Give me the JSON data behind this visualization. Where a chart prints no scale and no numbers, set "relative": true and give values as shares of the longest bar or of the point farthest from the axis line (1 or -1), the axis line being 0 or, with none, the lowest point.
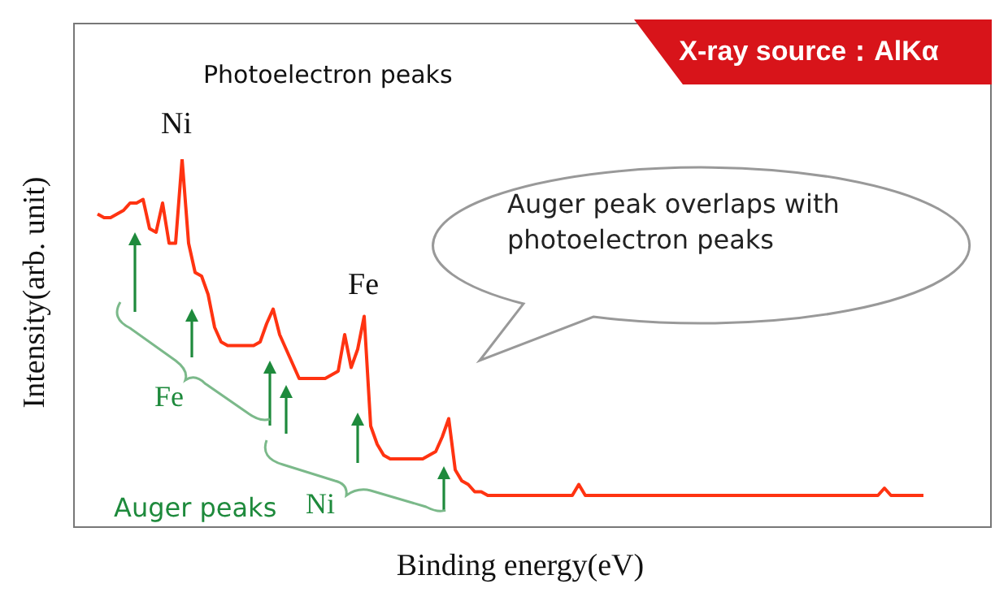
{
  "chart_data": {
    "type": "line",
    "relative": true,
    "marker": "none",
    "color": "#ff3311",
    "xlabel": "Binding energy(eV)",
    "ylabel": "Intensity(arb. unit)",
    "categories": [
      null,
      null,
      null,
      null,
      null,
      null,
      null,
      null,
      null,
      null,
      null,
      null,
      null,
      null,
      null,
      null,
      null,
      null,
      null,
      null,
      null,
      null,
      null,
      null,
      null,
      null,
      null,
      null,
      null,
      null,
      null,
      null,
      null,
      null,
      null,
      null,
      null,
      null,
      null,
      null,
      null,
      null,
      null,
      null,
      null,
      null,
      null,
      null,
      null,
      null,
      null,
      null,
      null,
      null,
      null,
      null,
      null,
      null,
      null,
      null,
      null,
      null,
      null,
      null,
      null,
      null,
      null,
      null,
      null,
      null,
      null,
      null,
      null,
      null,
      null,
      null,
      null,
      null,
      null,
      null,
      null,
      null,
      null,
      null,
      null,
      null,
      null,
      null,
      null,
      null,
      null,
      null,
      null,
      null,
      null,
      null,
      null,
      null,
      null,
      null,
      null,
      null,
      null,
      null,
      null,
      null,
      null,
      null,
      null,
      null,
      null,
      null,
      null,
      null,
      null,
      null,
      null,
      null,
      null,
      null,
      null,
      null,
      null,
      null,
      null,
      null,
      null,
      null
    ],
    "values": [
      0.85,
      0.84,
      0.84,
      0.85,
      0.86,
      0.88,
      0.88,
      0.89,
      0.81,
      0.8,
      0.88,
      0.77,
      0.77,
      1.0,
      0.77,
      0.69,
      0.68,
      0.63,
      0.54,
      0.5,
      0.49,
      0.49,
      0.49,
      0.49,
      0.49,
      0.5,
      0.55,
      0.59,
      0.52,
      0.48,
      0.44,
      0.4,
      0.4,
      0.4,
      0.4,
      0.4,
      0.41,
      0.42,
      0.52,
      0.43,
      0.48,
      0.57,
      0.27,
      0.22,
      0.19,
      0.18,
      0.18,
      0.18,
      0.18,
      0.18,
      0.18,
      0.19,
      0.2,
      0.24,
      0.29,
      0.15,
      0.12,
      0.11,
      0.09,
      0.09,
      0.08,
      0.08,
      0.08,
      0.08,
      0.08,
      0.08,
      0.08,
      0.08,
      0.08,
      0.08,
      0.08,
      0.08,
      0.08,
      0.08,
      0.11,
      0.08,
      0.08,
      0.08,
      0.08,
      0.08,
      0.08,
      0.08,
      0.08,
      0.08,
      0.08,
      0.08,
      0.08,
      0.08,
      0.08,
      0.08,
      0.08,
      0.08,
      0.08,
      0.08,
      0.08,
      0.08,
      0.08,
      0.08,
      0.08,
      0.08,
      0.08,
      0.08,
      0.08,
      0.08,
      0.08,
      0.08,
      0.08,
      0.08,
      0.08,
      0.08,
      0.08,
      0.08,
      0.08,
      0.08,
      0.08,
      0.08,
      0.08,
      0.08,
      0.08,
      0.08,
      0.08,
      0.1,
      0.08,
      0.08,
      0.08,
      0.08,
      0.08,
      0.08
    ],
    "annotations": [
      "X-ray source：AlKα",
      "Photoelectron peaks",
      "Ni",
      "Fe",
      "Auger peak overlaps with photoelectron peaks",
      "Fe",
      "Ni",
      "Auger peaks"
    ]
  }
}
